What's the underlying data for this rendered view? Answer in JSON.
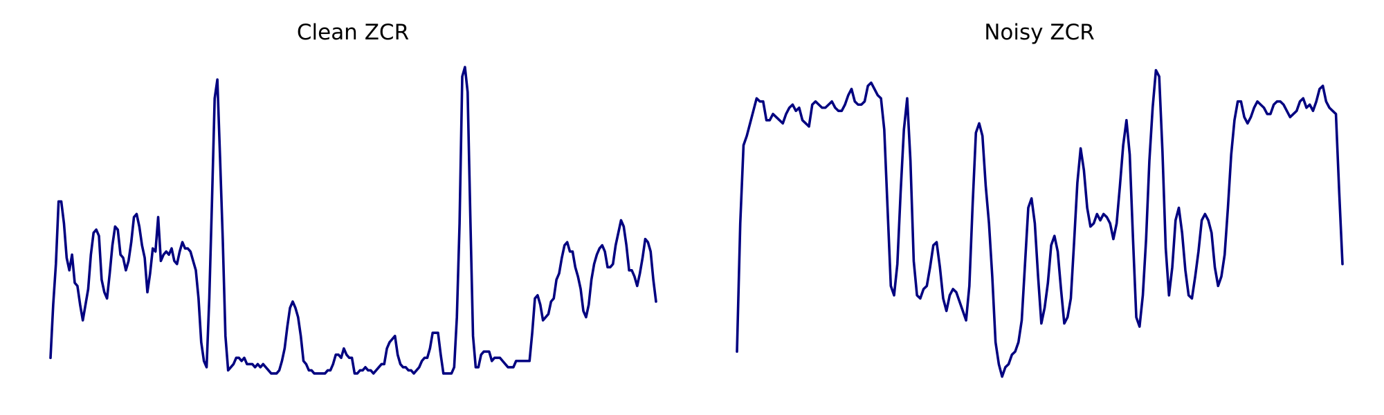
{
  "figure": {
    "background": "#ffffff",
    "line_color": "#000080"
  },
  "chart_data": [
    {
      "type": "line",
      "title": "Clean ZCR",
      "xlabel": "",
      "ylabel": "",
      "axes": "off",
      "grid": false,
      "ylim": [
        0,
        1
      ],
      "series": [
        {
          "values": [
            0.07,
            0.24,
            0.37,
            0.57,
            0.57,
            0.5,
            0.39,
            0.35,
            0.4,
            0.31,
            0.3,
            0.24,
            0.19,
            0.24,
            0.29,
            0.4,
            0.47,
            0.48,
            0.46,
            0.32,
            0.28,
            0.26,
            0.34,
            0.43,
            0.49,
            0.48,
            0.4,
            0.39,
            0.35,
            0.38,
            0.44,
            0.52,
            0.53,
            0.49,
            0.43,
            0.39,
            0.28,
            0.34,
            0.42,
            0.41,
            0.52,
            0.38,
            0.4,
            0.41,
            0.4,
            0.42,
            0.38,
            0.37,
            0.41,
            0.44,
            0.42,
            0.42,
            0.41,
            0.38,
            0.35,
            0.26,
            0.12,
            0.06,
            0.04,
            0.26,
            0.57,
            0.9,
            0.96,
            0.71,
            0.45,
            0.14,
            0.03,
            0.04,
            0.05,
            0.07,
            0.07,
            0.06,
            0.07,
            0.05,
            0.05,
            0.05,
            0.04,
            0.05,
            0.04,
            0.05,
            0.04,
            0.03,
            0.02,
            0.02,
            0.02,
            0.03,
            0.06,
            0.1,
            0.17,
            0.23,
            0.25,
            0.23,
            0.2,
            0.14,
            0.06,
            0.05,
            0.03,
            0.03,
            0.02,
            0.02,
            0.02,
            0.02,
            0.02,
            0.03,
            0.03,
            0.05,
            0.08,
            0.08,
            0.07,
            0.1,
            0.08,
            0.07,
            0.07,
            0.02,
            0.02,
            0.03,
            0.03,
            0.04,
            0.03,
            0.03,
            0.02,
            0.03,
            0.04,
            0.05,
            0.05,
            0.1,
            0.12,
            0.13,
            0.14,
            0.08,
            0.05,
            0.04,
            0.04,
            0.03,
            0.03,
            0.02,
            0.03,
            0.04,
            0.06,
            0.07,
            0.07,
            0.1,
            0.15,
            0.15,
            0.15,
            0.08,
            0.02,
            0.02,
            0.02,
            0.02,
            0.04,
            0.2,
            0.5,
            0.97,
            1.0,
            0.92,
            0.52,
            0.14,
            0.04,
            0.04,
            0.08,
            0.09,
            0.09,
            0.09,
            0.06,
            0.07,
            0.07,
            0.07,
            0.06,
            0.05,
            0.04,
            0.04,
            0.04,
            0.06,
            0.06,
            0.06,
            0.06,
            0.06,
            0.06,
            0.15,
            0.26,
            0.27,
            0.24,
            0.19,
            0.2,
            0.21,
            0.25,
            0.26,
            0.32,
            0.34,
            0.39,
            0.43,
            0.44,
            0.41,
            0.41,
            0.36,
            0.33,
            0.29,
            0.22,
            0.2,
            0.24,
            0.32,
            0.37,
            0.4,
            0.42,
            0.43,
            0.41,
            0.36,
            0.36,
            0.37,
            0.43,
            0.47,
            0.51,
            0.49,
            0.43,
            0.35,
            0.35,
            0.33,
            0.3,
            0.34,
            0.39,
            0.45,
            0.44,
            0.41,
            0.32,
            0.25
          ]
        }
      ]
    },
    {
      "type": "line",
      "title": "Noisy ZCR",
      "xlabel": "",
      "ylabel": "",
      "axes": "off",
      "grid": false,
      "ylim": [
        0,
        1
      ],
      "series": [
        {
          "values": [
            0.09,
            0.5,
            0.75,
            0.78,
            0.82,
            0.86,
            0.9,
            0.89,
            0.89,
            0.83,
            0.83,
            0.85,
            0.84,
            0.83,
            0.82,
            0.85,
            0.87,
            0.88,
            0.86,
            0.87,
            0.83,
            0.82,
            0.81,
            0.88,
            0.89,
            0.88,
            0.87,
            0.87,
            0.88,
            0.89,
            0.87,
            0.86,
            0.86,
            0.88,
            0.91,
            0.93,
            0.89,
            0.88,
            0.88,
            0.89,
            0.94,
            0.95,
            0.93,
            0.91,
            0.9,
            0.8,
            0.55,
            0.3,
            0.27,
            0.37,
            0.6,
            0.8,
            0.9,
            0.7,
            0.38,
            0.27,
            0.26,
            0.29,
            0.3,
            0.36,
            0.43,
            0.44,
            0.36,
            0.26,
            0.22,
            0.27,
            0.29,
            0.28,
            0.25,
            0.22,
            0.19,
            0.3,
            0.56,
            0.79,
            0.82,
            0.78,
            0.62,
            0.5,
            0.33,
            0.12,
            0.05,
            0.01,
            0.04,
            0.05,
            0.08,
            0.09,
            0.12,
            0.19,
            0.37,
            0.55,
            0.58,
            0.5,
            0.33,
            0.18,
            0.23,
            0.31,
            0.43,
            0.46,
            0.41,
            0.29,
            0.18,
            0.2,
            0.26,
            0.44,
            0.63,
            0.74,
            0.67,
            0.55,
            0.49,
            0.5,
            0.53,
            0.51,
            0.53,
            0.52,
            0.5,
            0.45,
            0.5,
            0.62,
            0.75,
            0.83,
            0.72,
            0.45,
            0.2,
            0.17,
            0.27,
            0.45,
            0.7,
            0.87,
            0.99,
            0.97,
            0.73,
            0.42,
            0.27,
            0.36,
            0.51,
            0.55,
            0.47,
            0.35,
            0.27,
            0.26,
            0.33,
            0.41,
            0.51,
            0.53,
            0.51,
            0.47,
            0.36,
            0.3,
            0.33,
            0.4,
            0.55,
            0.72,
            0.83,
            0.89,
            0.89,
            0.84,
            0.82,
            0.84,
            0.87,
            0.89,
            0.88,
            0.87,
            0.85,
            0.85,
            0.88,
            0.89,
            0.89,
            0.88,
            0.86,
            0.84,
            0.85,
            0.86,
            0.89,
            0.9,
            0.87,
            0.88,
            0.86,
            0.89,
            0.93,
            0.94,
            0.89,
            0.87,
            0.86,
            0.85,
            0.6,
            0.37
          ]
        }
      ]
    }
  ]
}
